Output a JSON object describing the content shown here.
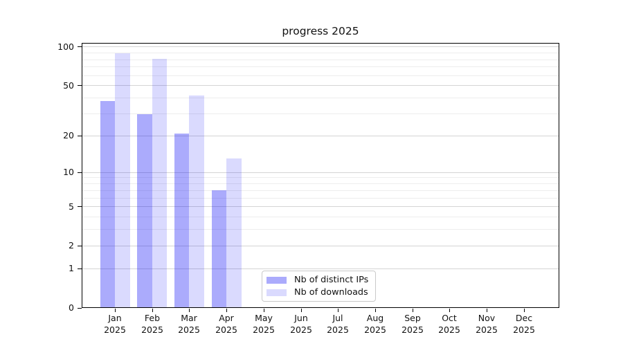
{
  "title": "progress 2025",
  "chart_data": {
    "type": "bar",
    "title": "progress 2025",
    "categories": [
      "Jan",
      "Feb",
      "Mar",
      "Apr",
      "May",
      "Jun",
      "Jul",
      "Aug",
      "Sep",
      "Oct",
      "Nov",
      "Dec"
    ],
    "x_year_label": "2025",
    "series": [
      {
        "name": "Nb of distinct IPs",
        "color": "rgba(8,8,245,0.34)",
        "values": [
          38,
          30,
          21,
          7,
          0,
          0,
          0,
          0,
          0,
          0,
          0,
          0
        ]
      },
      {
        "name": "Nb of downloads",
        "color": "rgba(8,8,245,0.15)",
        "values": [
          89,
          81,
          42,
          13,
          0,
          0,
          0,
          0,
          0,
          0,
          0,
          0
        ]
      }
    ],
    "xlabel": "",
    "ylabel": "",
    "y_scale": "log10(1+value)",
    "y_ticks": [
      0,
      1,
      2,
      5,
      10,
      20,
      50,
      100
    ],
    "y_minor_ticks": [
      3,
      4,
      6,
      7,
      8,
      9,
      30,
      40,
      60,
      70,
      80,
      90
    ],
    "ylim": [
      0,
      108
    ],
    "grid": true,
    "legend_position": "lower center"
  },
  "colors": {
    "bar_dark": "rgba(8,8,245,0.34)",
    "bar_light": "rgba(8,8,245,0.15)",
    "grid_major": "#d4d4d4",
    "grid_minor": "#ededed",
    "axis": "#000000"
  }
}
